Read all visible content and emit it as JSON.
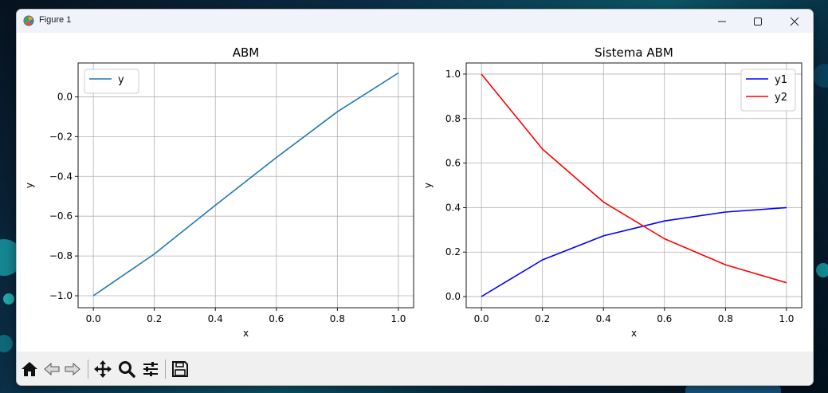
{
  "window": {
    "title": "Figure 1"
  },
  "toolbar": {
    "buttons": [
      {
        "name": "home-icon"
      },
      {
        "name": "back-arrow-icon"
      },
      {
        "name": "forward-arrow-icon"
      },
      {
        "name": "pan-move-icon"
      },
      {
        "name": "zoom-magnifier-icon"
      },
      {
        "name": "configure-subplots-icon"
      },
      {
        "name": "save-floppy-icon"
      }
    ]
  },
  "colors": {
    "left_series": "#1f77b4",
    "y1": "#0000ff",
    "y2": "#ff0000",
    "grid": "#b0b0b0"
  },
  "chart_data": [
    {
      "type": "line",
      "title": "ABM",
      "xlabel": "x",
      "ylabel": "y",
      "xlim": [
        -0.05,
        1.05
      ],
      "ylim": [
        -1.06,
        0.17
      ],
      "xticks": [
        0.0,
        0.2,
        0.4,
        0.6,
        0.8,
        1.0
      ],
      "xtick_labels": [
        "0.0",
        "0.2",
        "0.4",
        "0.6",
        "0.8",
        "1.0"
      ],
      "yticks": [
        -1.0,
        -0.8,
        -0.6,
        -0.4,
        -0.2,
        0.0
      ],
      "ytick_labels": [
        "−1.0",
        "−0.8",
        "−0.6",
        "−0.4",
        "−0.2",
        "0.0"
      ],
      "grid": true,
      "legend": "upper-left",
      "series": [
        {
          "name": "y",
          "color": "#1f77b4",
          "x": [
            0.0,
            0.2,
            0.4,
            0.6,
            0.8,
            1.0
          ],
          "y": [
            -1.0,
            -0.79,
            -0.545,
            -0.305,
            -0.075,
            0.12
          ]
        }
      ]
    },
    {
      "type": "line",
      "title": "Sistema ABM",
      "xlabel": "x",
      "ylabel": "y",
      "xlim": [
        -0.05,
        1.05
      ],
      "ylim": [
        -0.05,
        1.05
      ],
      "xticks": [
        0.0,
        0.2,
        0.4,
        0.6,
        0.8,
        1.0
      ],
      "xtick_labels": [
        "0.0",
        "0.2",
        "0.4",
        "0.6",
        "0.8",
        "1.0"
      ],
      "yticks": [
        0.0,
        0.2,
        0.4,
        0.6,
        0.8,
        1.0
      ],
      "ytick_labels": [
        "0.0",
        "0.2",
        "0.4",
        "0.6",
        "0.8",
        "1.0"
      ],
      "grid": true,
      "legend": "upper-right",
      "series": [
        {
          "name": "y1",
          "color": "#0000ff",
          "x": [
            0.0,
            0.2,
            0.4,
            0.6,
            0.8,
            1.0
          ],
          "y": [
            0.0,
            0.165,
            0.273,
            0.34,
            0.38,
            0.4
          ]
        },
        {
          "name": "y2",
          "color": "#ff0000",
          "x": [
            0.0,
            0.2,
            0.4,
            0.6,
            0.8,
            1.0
          ],
          "y": [
            1.0,
            0.663,
            0.425,
            0.26,
            0.143,
            0.062
          ]
        }
      ]
    }
  ]
}
